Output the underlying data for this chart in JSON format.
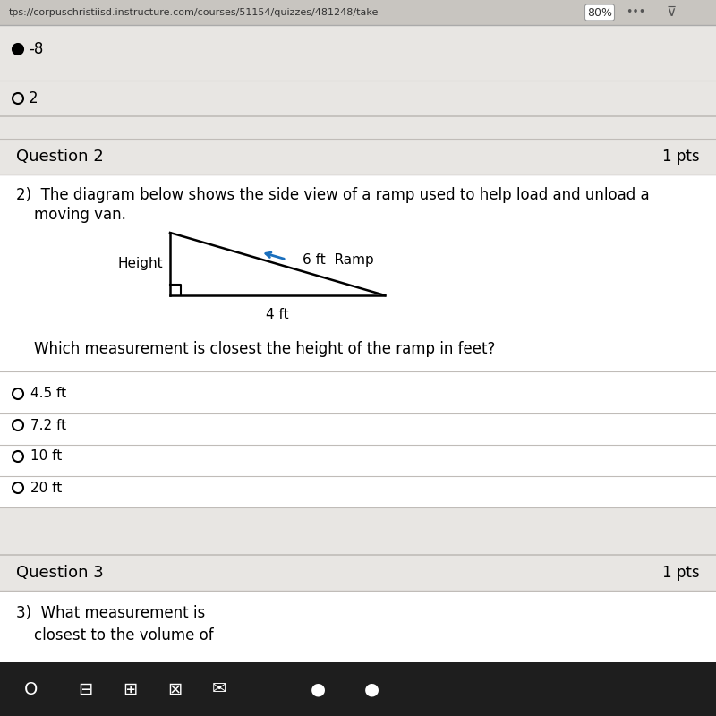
{
  "bg_color": "#e8e6e3",
  "white": "#ffffff",
  "gray_header": "#d8d5d0",
  "divider": "#c0bcb8",
  "black": "#000000",
  "text_dark": "#1a1a1a",
  "arrow_color": "#1a6fbd",
  "taskbar_color": "#1e1e1e",
  "url_bar_color": "#c8c5c0",
  "browser_text": "tps://corpuschristiisd.instructure.com/courses/51154/quizzes/481248/take",
  "pct_text": "80%",
  "q2_header": "Question 2",
  "q3_header": "Question 3",
  "pts": "1 pts",
  "choice_neg8": "-8",
  "choice_2": "2",
  "question_line1": "2)  The diagram below shows the side view of a ramp used to help load and unload a",
  "question_line2": "     moving van.",
  "sub_question": "Which measurement is closest the height of the ramp in feet?",
  "choices": [
    "4.5 ft",
    "7.2 ft",
    "10 ft",
    "20 ft"
  ],
  "q3_line1": "3)  What measurement is",
  "q3_line2": "     closest to the volume of",
  "height_label": "Height",
  "base_label": "4 ft",
  "hyp_label": "6 ft",
  "ramp_label": "Ramp",
  "taskbar_icons": [
    "O",
    "⊡",
    "■",
    "⊠",
    "✉",
    "●"
  ]
}
